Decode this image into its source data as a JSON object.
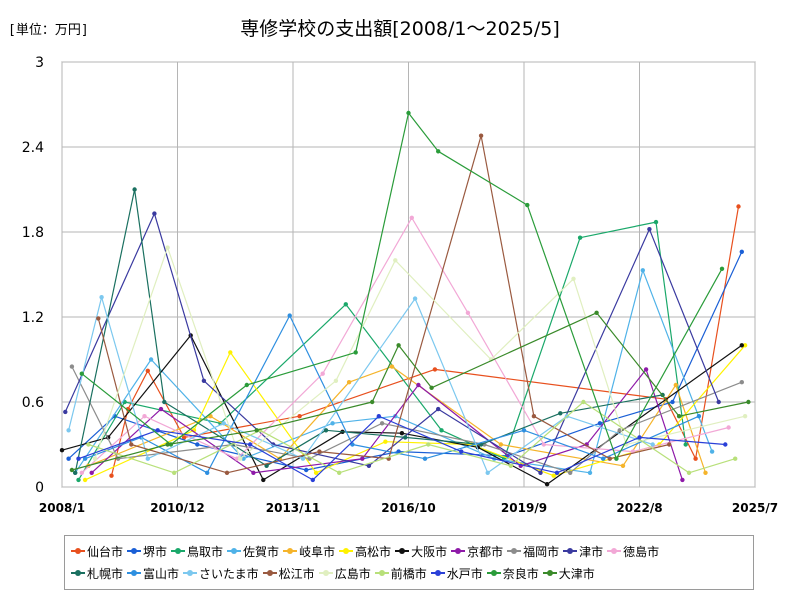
{
  "header": {
    "unit": "[単位：万円]",
    "title": "専修学校の支出額[2008/1～2025/5]"
  },
  "chart_data": {
    "type": "line",
    "title": "専修学校の支出額[2008/1～2025/5]",
    "ylabel": "[単位：万円]",
    "xlim": [
      "2008/1",
      "2025/7"
    ],
    "ylim": [
      0,
      3
    ],
    "yticks": [
      "0",
      "0.6",
      "1.2",
      "1.8",
      "2.4",
      "3"
    ],
    "xticks": [
      "2008/1",
      "2010/12",
      "2013/11",
      "2016/10",
      "2019/9",
      "2022/8",
      "2025/7"
    ],
    "grid": true,
    "legend_position": "bottom",
    "series": [
      {
        "name": "仙台市",
        "color": "#e8501e",
        "points": [
          [
            "2009/4",
            0.08
          ],
          [
            "2009/9",
            0.55
          ],
          [
            "2010/3",
            0.82
          ],
          [
            "2011/2",
            0.35
          ],
          [
            "2014/1",
            0.5
          ],
          [
            "2017/6",
            0.83
          ],
          [
            "2023/4",
            0.62
          ],
          [
            "2024/1",
            0.2
          ],
          [
            "2025/2",
            1.98
          ]
        ]
      },
      {
        "name": "堺市",
        "color": "#1a5fd6",
        "points": [
          [
            "2008/3",
            0.2
          ],
          [
            "2009/5",
            0.5
          ],
          [
            "2011/6",
            0.3
          ],
          [
            "2014/3",
            0.12
          ],
          [
            "2016/7",
            0.25
          ],
          [
            "2019/4",
            0.22
          ],
          [
            "2021/8",
            0.45
          ],
          [
            "2023/6",
            0.6
          ],
          [
            "2025/3",
            1.66
          ]
        ]
      },
      {
        "name": "鳥取市",
        "color": "#1aa86a",
        "points": [
          [
            "2008/6",
            0.05
          ],
          [
            "2009/8",
            0.6
          ],
          [
            "2012/1",
            0.45
          ],
          [
            "2015/3",
            1.29
          ],
          [
            "2017/8",
            0.4
          ],
          [
            "2019/3",
            0.2
          ],
          [
            "2021/2",
            1.76
          ],
          [
            "2023/1",
            1.87
          ],
          [
            "2023/10",
            0.3
          ]
        ]
      },
      {
        "name": "佐賀市",
        "color": "#4fb2e8",
        "points": [
          [
            "2008/5",
            0.1
          ],
          [
            "2010/4",
            0.9
          ],
          [
            "2012/8",
            0.2
          ],
          [
            "2014/11",
            0.45
          ],
          [
            "2016/6",
            0.5
          ],
          [
            "2018/12",
            0.2
          ],
          [
            "2021/5",
            0.1
          ],
          [
            "2022/9",
            1.53
          ],
          [
            "2024/6",
            0.25
          ]
        ]
      },
      {
        "name": "岐阜市",
        "color": "#f5b42b",
        "points": [
          [
            "2008/9",
            0.15
          ],
          [
            "2011/10",
            0.5
          ],
          [
            "2013/7",
            0.2
          ],
          [
            "2015/4",
            0.74
          ],
          [
            "2016/5",
            0.85
          ],
          [
            "2019/2",
            0.3
          ],
          [
            "2022/3",
            0.15
          ],
          [
            "2023/7",
            0.72
          ],
          [
            "2024/4",
            0.1
          ]
        ]
      },
      {
        "name": "高松市",
        "color": "#fff200",
        "points": [
          [
            "2008/8",
            0.05
          ],
          [
            "2011/5",
            0.4
          ],
          [
            "2012/4",
            0.95
          ],
          [
            "2014/6",
            0.1
          ],
          [
            "2016/3",
            0.32
          ],
          [
            "2018/5",
            0.3
          ],
          [
            "2020/6",
            0.08
          ],
          [
            "2023/2",
            0.3
          ],
          [
            "2025/4",
            1.0
          ]
        ]
      },
      {
        "name": "大阪市",
        "color": "#111111",
        "points": [
          [
            "2008/1",
            0.26
          ],
          [
            "2009/3",
            0.35
          ],
          [
            "2011/4",
            1.07
          ],
          [
            "2013/2",
            0.05
          ],
          [
            "2015/2",
            0.39
          ],
          [
            "2016/8",
            0.38
          ],
          [
            "2018/7",
            0.28
          ],
          [
            "2020/4",
            0.02
          ],
          [
            "2025/3",
            1.0
          ]
        ]
      },
      {
        "name": "京都市",
        "color": "#8e1aa8",
        "points": [
          [
            "2008/10",
            0.1
          ],
          [
            "2010/7",
            0.55
          ],
          [
            "2012/11",
            0.1
          ],
          [
            "2015/8",
            0.2
          ],
          [
            "2017/1",
            0.72
          ],
          [
            "2019/8",
            0.15
          ],
          [
            "2021/4",
            0.3
          ],
          [
            "2022/10",
            0.83
          ],
          [
            "2023/9",
            0.05
          ]
        ]
      },
      {
        "name": "福岡市",
        "color": "#8c8c8c",
        "points": [
          [
            "2008/4",
            0.85
          ],
          [
            "2009/6",
            0.2
          ],
          [
            "2012/5",
            0.3
          ],
          [
            "2014/4",
            0.2
          ],
          [
            "2016/2",
            0.45
          ],
          [
            "2018/9",
            0.3
          ],
          [
            "2020/11",
            0.1
          ],
          [
            "2022/2",
            0.4
          ],
          [
            "2025/3",
            0.74
          ]
        ]
      },
      {
        "name": "津市",
        "color": "#3a3aa0",
        "points": [
          [
            "2008/2",
            0.53
          ],
          [
            "2010/5",
            1.93
          ],
          [
            "2011/8",
            0.75
          ],
          [
            "2013/5",
            0.3
          ],
          [
            "2015/10",
            0.15
          ],
          [
            "2017/7",
            0.55
          ],
          [
            "2020/2",
            0.1
          ],
          [
            "2022/11",
            1.82
          ],
          [
            "2024/8",
            0.6
          ]
        ]
      },
      {
        "name": "徳島市",
        "color": "#f2a8d6",
        "points": [
          [
            "2008/7",
            0.1
          ],
          [
            "2010/2",
            0.5
          ],
          [
            "2012/6",
            0.2
          ],
          [
            "2014/8",
            0.8
          ],
          [
            "2016/11",
            1.9
          ],
          [
            "2018/4",
            1.23
          ],
          [
            "2020/3",
            0.3
          ],
          [
            "2022/6",
            0.25
          ],
          [
            "2024/11",
            0.42
          ]
        ]
      },
      {
        "name": "札幌市",
        "color": "#1a7060",
        "points": [
          [
            "2008/5",
            0.1
          ],
          [
            "2009/11",
            2.1
          ],
          [
            "2010/8",
            0.6
          ],
          [
            "2013/3",
            0.15
          ],
          [
            "2014/9",
            0.4
          ],
          [
            "2016/9",
            0.35
          ],
          [
            "2018/8",
            0.3
          ],
          [
            "2020/8",
            0.52
          ],
          [
            "2023/3",
            0.65
          ]
        ]
      },
      {
        "name": "富山市",
        "color": "#2e8fe0",
        "points": [
          [
            "2008/8",
            0.2
          ],
          [
            "2010/1",
            0.35
          ],
          [
            "2011/9",
            0.1
          ],
          [
            "2013/10",
            1.21
          ],
          [
            "2015/5",
            0.3
          ],
          [
            "2017/3",
            0.2
          ],
          [
            "2019/9",
            0.4
          ],
          [
            "2021/9",
            0.2
          ],
          [
            "2024/2",
            0.5
          ]
        ]
      },
      {
        "name": "さいたま市",
        "color": "#7cc8ef",
        "points": [
          [
            "2008/3",
            0.4
          ],
          [
            "2009/1",
            1.34
          ],
          [
            "2010/3",
            0.2
          ],
          [
            "2012/2",
            0.45
          ],
          [
            "2014/2",
            0.2
          ],
          [
            "2016/12",
            1.33
          ],
          [
            "2018/10",
            0.1
          ],
          [
            "2020/10",
            0.5
          ],
          [
            "2022/12",
            0.3
          ]
        ]
      },
      {
        "name": "松江市",
        "color": "#9a5a40",
        "points": [
          [
            "2008/12",
            1.19
          ],
          [
            "2009/10",
            0.3
          ],
          [
            "2012/3",
            0.1
          ],
          [
            "2014/7",
            0.25
          ],
          [
            "2016/4",
            0.2
          ],
          [
            "2018/8",
            2.48
          ],
          [
            "2019/12",
            0.5
          ],
          [
            "2021/11",
            0.2
          ],
          [
            "2023/5",
            0.3
          ]
        ]
      },
      {
        "name": "広島市",
        "color": "#e0efc0",
        "points": [
          [
            "2008/11",
            0.2
          ],
          [
            "2010/9",
            1.69
          ],
          [
            "2012/7",
            0.2
          ],
          [
            "2014/12",
            0.75
          ],
          [
            "2016/6",
            1.6
          ],
          [
            "2018/11",
            0.9
          ],
          [
            "2020/12",
            1.47
          ],
          [
            "2022/4",
            0.3
          ],
          [
            "2025/4",
            0.5
          ]
        ]
      },
      {
        "name": "前橋市",
        "color": "#b8e07a",
        "points": [
          [
            "2008/9",
            0.3
          ],
          [
            "2010/11",
            0.1
          ],
          [
            "2013/1",
            0.4
          ],
          [
            "2015/1",
            0.1
          ],
          [
            "2017/4",
            0.3
          ],
          [
            "2019/5",
            0.15
          ],
          [
            "2021/3",
            0.6
          ],
          [
            "2023/11",
            0.1
          ],
          [
            "2025/1",
            0.2
          ]
        ]
      },
      {
        "name": "水戸市",
        "color": "#2a40d8",
        "points": [
          [
            "2008/6",
            0.2
          ],
          [
            "2010/6",
            0.4
          ],
          [
            "2012/10",
            0.3
          ],
          [
            "2014/5",
            0.05
          ],
          [
            "2016/1",
            0.5
          ],
          [
            "2018/2",
            0.25
          ],
          [
            "2020/7",
            0.1
          ],
          [
            "2022/8",
            0.35
          ],
          [
            "2024/10",
            0.3
          ]
        ]
      },
      {
        "name": "奈良市",
        "color": "#2a9c3a",
        "points": [
          [
            "2008/7",
            0.8
          ],
          [
            "2010/10",
            0.3
          ],
          [
            "2012/9",
            0.72
          ],
          [
            "2015/6",
            0.95
          ],
          [
            "2016/10",
            2.64
          ],
          [
            "2017/7",
            2.37
          ],
          [
            "2019/10",
            1.99
          ],
          [
            "2022/1",
            0.2
          ],
          [
            "2024/9",
            1.54
          ]
        ]
      },
      {
        "name": "大津市",
        "color": "#3a8a2a",
        "points": [
          [
            "2008/4",
            0.12
          ],
          [
            "2010/9",
            0.3
          ],
          [
            "2012/12",
            0.4
          ],
          [
            "2015/11",
            0.6
          ],
          [
            "2016/7",
            1.0
          ],
          [
            "2017/5",
            0.7
          ],
          [
            "2021/7",
            1.23
          ],
          [
            "2023/8",
            0.5
          ],
          [
            "2025/5",
            0.6
          ]
        ]
      }
    ]
  }
}
